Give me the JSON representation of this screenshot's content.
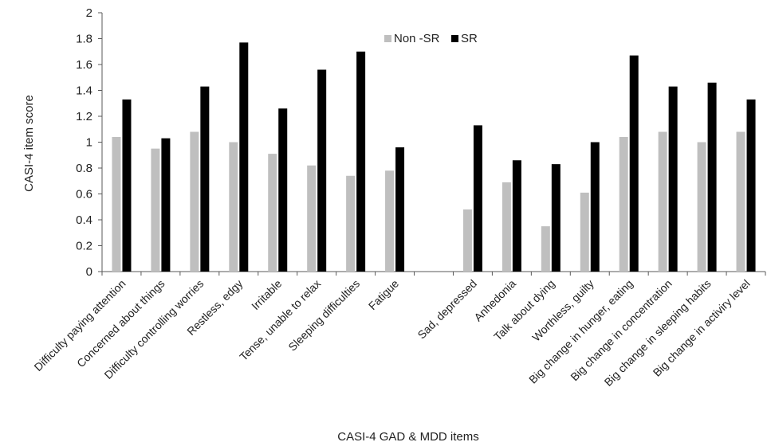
{
  "chart_data": {
    "type": "bar",
    "title": "",
    "xlabel": "CASI-4 GAD & MDD items",
    "ylabel": "CASI-4 item score",
    "ylim": [
      0,
      2
    ],
    "yticks": [
      "0",
      "0.2",
      "0.4",
      "0.6",
      "0.8",
      "1",
      "1.2",
      "1.4",
      "1.6",
      "1.8",
      "2"
    ],
    "grid": false,
    "legend_position": "top-center",
    "categories": [
      "Difficulty paying attention",
      "Concerned about things",
      "Difficulty controlling worries",
      "Restless, edgy",
      "Irritable",
      "Tense, unable to relax",
      "Sleeping difficulties",
      "Fatigue",
      "",
      "Sad, depressed",
      "Anhedonia",
      "Talk about dying",
      "Worthless, guilty",
      "Big change in hunger, eating",
      "Big change in concentration",
      "Big change in sleeping habits",
      "Big change in activiry level"
    ],
    "series": [
      {
        "name": "Non -SR",
        "color": "#bfbfbf",
        "values": [
          1.04,
          0.95,
          1.08,
          1.0,
          0.91,
          0.82,
          0.74,
          0.78,
          null,
          0.48,
          0.69,
          0.35,
          0.61,
          1.04,
          1.08,
          1.0,
          1.08
        ]
      },
      {
        "name": "SR",
        "color": "#000000",
        "values": [
          1.33,
          1.03,
          1.43,
          1.77,
          1.26,
          1.56,
          1.7,
          0.96,
          null,
          1.13,
          0.86,
          0.83,
          1.0,
          1.67,
          1.43,
          1.46,
          1.33
        ]
      }
    ]
  }
}
